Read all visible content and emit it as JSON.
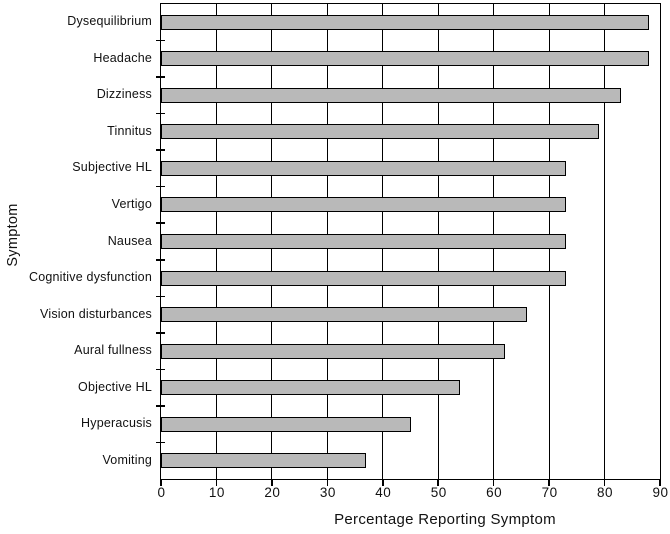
{
  "chart_data": {
    "type": "bar",
    "orientation": "horizontal",
    "title": "",
    "xlabel": "Percentage Reporting Symptom",
    "ylabel": "Symptom",
    "categories": [
      "Dysequilibrium",
      "Headache",
      "Dizziness",
      "Tinnitus",
      "Subjective HL",
      "Vertigo",
      "Nausea",
      "Cognitive dysfunction",
      "Vision disturbances",
      "Aural fullness",
      "Objective HL",
      "Hyperacusis",
      "Vomiting"
    ],
    "values": [
      88,
      88,
      83,
      79,
      73,
      73,
      73,
      73,
      66,
      62,
      54,
      45,
      37
    ],
    "xlim": [
      0,
      90
    ],
    "x_ticks": [
      0,
      10,
      20,
      30,
      40,
      50,
      60,
      70,
      80,
      90
    ],
    "grid": "vertical",
    "legend": "none",
    "bar_fill": "#b9b9b9",
    "bar_border": "#000000",
    "axis_color": "#000000",
    "background": "#ffffff"
  }
}
